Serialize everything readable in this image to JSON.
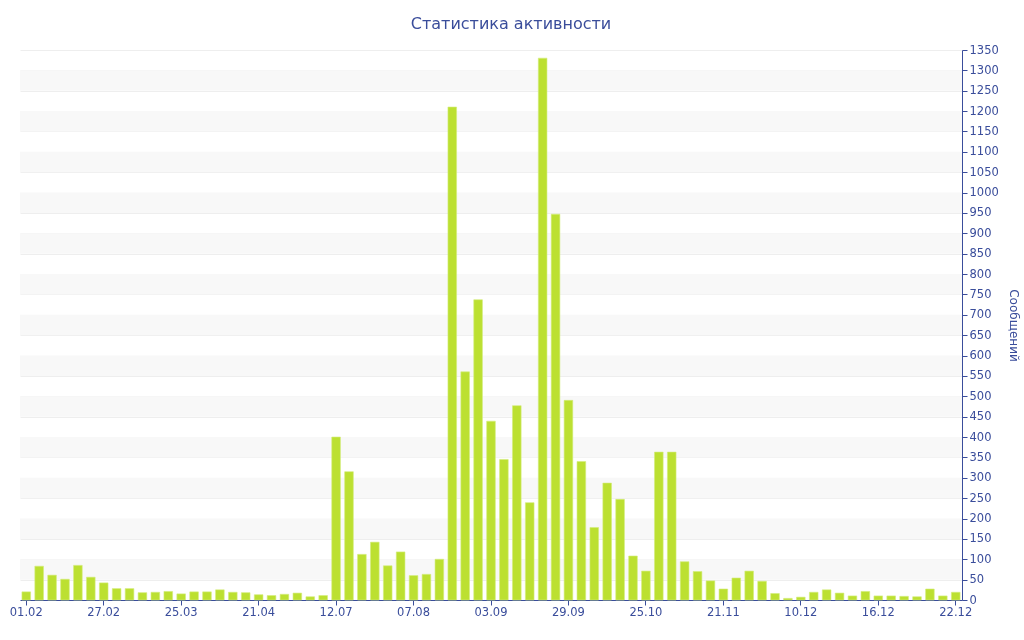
{
  "chart_data": {
    "type": "bar",
    "title": "Статистика активности",
    "ylabel": "Сообщений",
    "categories": [
      "01.02",
      null,
      null,
      null,
      null,
      null,
      "27.02",
      null,
      null,
      null,
      null,
      null,
      "25.03",
      null,
      null,
      null,
      null,
      null,
      "21.04",
      null,
      null,
      null,
      null,
      null,
      "12.07",
      null,
      null,
      null,
      null,
      null,
      "07.08",
      null,
      null,
      null,
      null,
      null,
      "03.09",
      null,
      null,
      null,
      null,
      null,
      "29.09",
      null,
      null,
      null,
      null,
      null,
      "25.10",
      null,
      null,
      null,
      null,
      null,
      "21.11",
      null,
      null,
      null,
      null,
      null,
      "10.12",
      null,
      null,
      null,
      null,
      null,
      "16.12",
      null,
      null,
      null,
      null,
      null,
      "22.12"
    ],
    "values": [
      20,
      83,
      61,
      51,
      85,
      56,
      42,
      28,
      28,
      18,
      19,
      21,
      15,
      20,
      20,
      25,
      19,
      18,
      13,
      11,
      14,
      17,
      8,
      11,
      400,
      315,
      112,
      142,
      84,
      118,
      60,
      63,
      100,
      1210,
      560,
      737,
      439,
      345,
      477,
      239,
      1330,
      947,
      490,
      340,
      178,
      287,
      247,
      108,
      71,
      363,
      363,
      94,
      70,
      47,
      27,
      54,
      71,
      46,
      16,
      4,
      7,
      19,
      25,
      17,
      10,
      21,
      10,
      10,
      9,
      8,
      27,
      10,
      19
    ],
    "color": "#bce031",
    "ylim": [
      0,
      1350
    ],
    "yticks": [
      0,
      50,
      100,
      150,
      200,
      250,
      300,
      350,
      400,
      450,
      500,
      550,
      600,
      650,
      700,
      750,
      800,
      850,
      900,
      950,
      1000,
      1050,
      1100,
      1150,
      1200,
      1250,
      1300,
      1350
    ],
    "grid": "y"
  }
}
